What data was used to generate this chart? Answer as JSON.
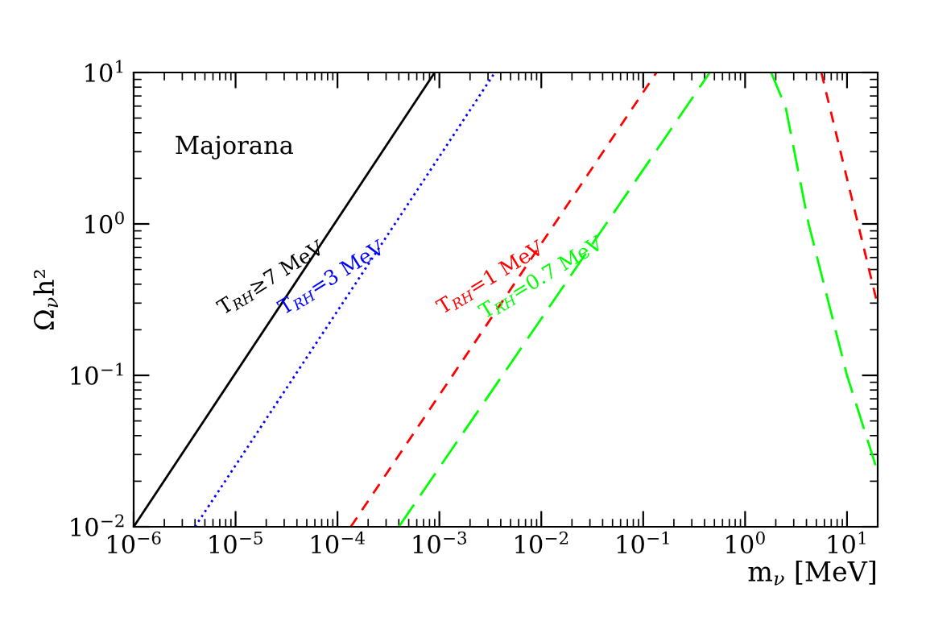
{
  "chart_data": {
    "type": "line",
    "xlabel": "m$_{ν}$ [MeV]",
    "ylabel": "Ω$_{ν}$h²",
    "log": "xy",
    "xlim": [
      1e-06,
      20
    ],
    "ylim": [
      0.01,
      10
    ],
    "xticks": [
      {
        "value": 1e-06,
        "label": "10$^{−6}$"
      },
      {
        "value": 1e-05,
        "label": "10$^{−5}$"
      },
      {
        "value": 0.0001,
        "label": "10$^{−4}$"
      },
      {
        "value": 0.001,
        "label": "10$^{−3}$"
      },
      {
        "value": 0.01,
        "label": "10$^{−2}$"
      },
      {
        "value": 0.1,
        "label": "10$^{−1}$"
      },
      {
        "value": 1,
        "label": "10$^{0}$"
      },
      {
        "value": 10,
        "label": "10$^{1}$"
      }
    ],
    "yticks": [
      {
        "value": 0.01,
        "label": "10$^{−2}$"
      },
      {
        "value": 0.1,
        "label": "10$^{−1}$"
      },
      {
        "value": 1,
        "label": "10$^{0}$"
      },
      {
        "value": 10,
        "label": "10$^{1}$"
      }
    ],
    "grid": false,
    "legend": false,
    "annotations": [
      "Majorana"
    ],
    "series": [
      {
        "name": "T$_{RH}$≥7 MeV",
        "color": "#000000",
        "line_style": "solid",
        "x": [
          1e-06,
          0.0009
        ],
        "values": [
          0.01,
          10
        ]
      },
      {
        "name": "T$_{RH}$=3 MeV",
        "color": "#0000ff",
        "line_style": "dotted",
        "x": [
          4e-06,
          0.0035
        ],
        "values": [
          0.01,
          10
        ]
      },
      {
        "name": "T$_{RH}$=1 MeV",
        "color": "#ff0000",
        "line_style": "dashed",
        "x": [
          0.000135,
          0.135,
          1,
          5.6,
          20
        ],
        "values": [
          0.01,
          10,
          null,
          10,
          0.29
        ]
      },
      {
        "name": "T$_{RH}$=0.7 MeV",
        "color": "#00ff00",
        "line_style": "dashed",
        "x": [
          0.0004,
          0.45,
          1,
          1.8,
          2.5,
          4.2,
          10,
          20
        ],
        "values": [
          0.01,
          10,
          null,
          10,
          5.9,
          1,
          0.1,
          0.023
        ]
      }
    ]
  }
}
